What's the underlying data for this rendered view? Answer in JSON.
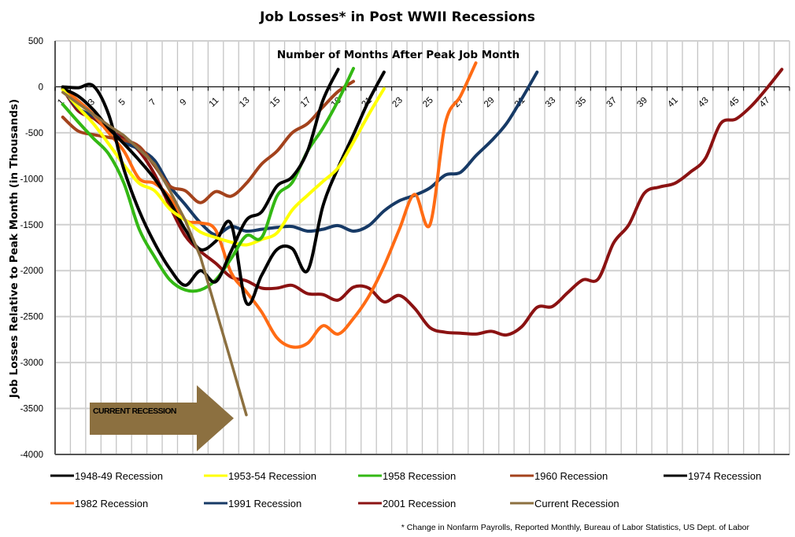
{
  "chart_data": {
    "type": "line",
    "title": "Job Losses* in Post WWII Recessions",
    "subtitle": "Number of Months After Peak Job Month",
    "ylabel": "Job Losses Relative to Peak Month (in Thousands)",
    "xlabel": "",
    "ylim": [
      -4000,
      500
    ],
    "yticks": [
      500,
      0,
      -500,
      -1000,
      -1500,
      -2000,
      -2500,
      -3000,
      -3500,
      -4000
    ],
    "x_categories": 48,
    "xtick_labels": [
      "1",
      "3",
      "5",
      "7",
      "9",
      "11",
      "13",
      "15",
      "17",
      "19",
      "21",
      "23",
      "25",
      "27",
      "29",
      "31",
      "33",
      "35",
      "37",
      "39",
      "41",
      "43",
      "45",
      "47"
    ],
    "grid": true,
    "legend_position": "bottom",
    "footnote": "* Change in Nonfarm Payrolls, Reported Monthly, Bureau of Labor Statistics, US Dept. of Labor",
    "annotation": "CURRENT RECESSION",
    "series": [
      {
        "name": "1948-49 Recession",
        "color": "#000000",
        "values": [
          -20,
          -100,
          -250,
          -450,
          -620,
          -800,
          -1000,
          -1250,
          -1550,
          -1770,
          -1680,
          -1490,
          -2350,
          -2050,
          -1770,
          -1760,
          -2000,
          -1300,
          -880,
          -520,
          -150,
          160
        ]
      },
      {
        "name": "1953-54 Recession",
        "color": "#ffff00",
        "values": [
          -30,
          -220,
          -400,
          -620,
          -850,
          -1050,
          -1130,
          -1330,
          -1450,
          -1580,
          -1640,
          -1690,
          -1720,
          -1660,
          -1590,
          -1340,
          -1180,
          -1030,
          -880,
          -600,
          -300,
          -20
        ]
      },
      {
        "name": "1958 Recession",
        "color": "#33b814",
        "values": [
          -190,
          -380,
          -560,
          -730,
          -1050,
          -1550,
          -1850,
          -2100,
          -2210,
          -2210,
          -2100,
          -1870,
          -1620,
          -1640,
          -1190,
          -1040,
          -700,
          -450,
          -150,
          200
        ]
      },
      {
        "name": "1960 Recession",
        "color": "#a3421c",
        "values": [
          -330,
          -480,
          -520,
          -550,
          -580,
          -650,
          -860,
          -1080,
          -1130,
          -1260,
          -1140,
          -1190,
          -1050,
          -840,
          -700,
          -500,
          -400,
          -220,
          -50,
          60
        ]
      },
      {
        "name": "1974 Recession",
        "color": "#000000",
        "values": [
          0,
          -10,
          10,
          -300,
          -900,
          -1350,
          -1700,
          -1980,
          -2160,
          -2000,
          -2120,
          -1790,
          -1450,
          -1360,
          -1080,
          -980,
          -700,
          -150,
          190
        ]
      },
      {
        "name": "1982 Recession",
        "color": "#ff6b14",
        "values": [
          -20,
          -150,
          -300,
          -500,
          -700,
          -1000,
          -1050,
          -1200,
          -1450,
          -1480,
          -1560,
          -2020,
          -2230,
          -2450,
          -2730,
          -2830,
          -2790,
          -2600,
          -2690,
          -2520,
          -2280,
          -1950,
          -1550,
          -1170,
          -1500,
          -400,
          -100,
          260
        ]
      },
      {
        "name": "1991 Recession",
        "color": "#173a66",
        "values": [
          -20,
          -230,
          -320,
          -450,
          -600,
          -680,
          -800,
          -1080,
          -1280,
          -1480,
          -1610,
          -1520,
          -1570,
          -1550,
          -1530,
          -1520,
          -1570,
          -1550,
          -1510,
          -1570,
          -1510,
          -1350,
          -1240,
          -1180,
          -1100,
          -960,
          -930,
          -750,
          -590,
          -400,
          -130,
          160
        ]
      },
      {
        "name": "2001 Recession",
        "color": "#8b1212",
        "values": [
          -20,
          -260,
          -340,
          -470,
          -560,
          -700,
          -950,
          -1300,
          -1620,
          -1790,
          -1920,
          -2070,
          -2110,
          -2190,
          -2190,
          -2160,
          -2250,
          -2260,
          -2320,
          -2180,
          -2190,
          -2340,
          -2270,
          -2410,
          -2620,
          -2670,
          -2680,
          -2690,
          -2660,
          -2700,
          -2610,
          -2400,
          -2390,
          -2240,
          -2100,
          -2090,
          -1700,
          -1500,
          -1160,
          -1090,
          -1050,
          -930,
          -780,
          -400,
          -350,
          -210,
          -20,
          190
        ]
      },
      {
        "name": "Current Recession",
        "color": "#8c7040",
        "values": [
          -60,
          -180,
          -300,
          -420,
          -530,
          -680,
          -840,
          -1130,
          -1450,
          -1850,
          -2420,
          -2990,
          -3570
        ]
      }
    ]
  }
}
